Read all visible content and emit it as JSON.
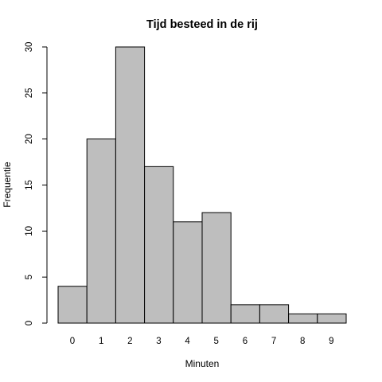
{
  "chart_data": {
    "type": "bar",
    "title": "Tijd besteed in de rij",
    "xlabel": "Minuten",
    "ylabel": "Frequentie",
    "categories": [
      "0",
      "1",
      "2",
      "3",
      "4",
      "5",
      "6",
      "7",
      "8",
      "9"
    ],
    "values": [
      4,
      20,
      30,
      17,
      11,
      12,
      2,
      2,
      1,
      1
    ],
    "ylim": [
      0,
      30
    ],
    "yticks": [
      0,
      5,
      10,
      15,
      20,
      25,
      30
    ],
    "grid": false,
    "legend": "none",
    "bar_color": "#bebebe",
    "border_color": "#000000"
  }
}
